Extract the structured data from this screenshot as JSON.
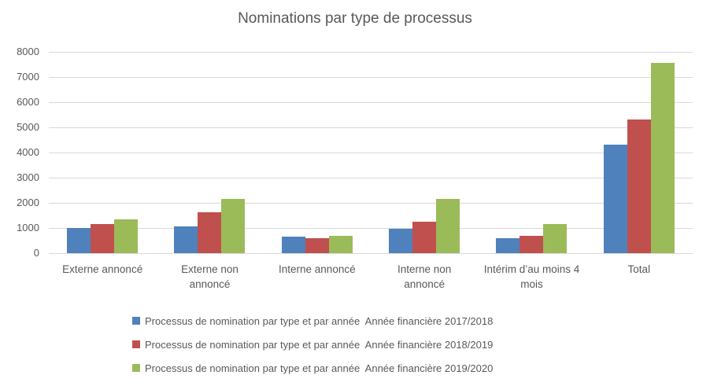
{
  "colors": {
    "background": "#ffffff",
    "gridline": "#d9d9d9",
    "text": "#595959",
    "series_blue": "#4F81BD",
    "series_red": "#C0504D",
    "series_green": "#9BBB59"
  },
  "chart_data": {
    "type": "bar",
    "title": "Nominations par type de processus",
    "categories": [
      "Externe annoncé",
      "Externe non annoncé",
      "Interne annoncé",
      "Interne non annoncé",
      "Intérim d’au moins 4 mois",
      "Total"
    ],
    "series": [
      {
        "name": "Processus de nomination par type et par année  Année financière 2017/2018",
        "color": "#4F81BD",
        "values": [
          1000,
          1050,
          670,
          980,
          600,
          4300
        ]
      },
      {
        "name": "Processus de nomination par type et par année  Année financière 2018/2019",
        "color": "#C0504D",
        "values": [
          1150,
          1630,
          580,
          1240,
          700,
          5300
        ]
      },
      {
        "name": "Processus de nomination par type et par année  Année financière 2019/2020",
        "color": "#9BBB59",
        "values": [
          1350,
          2150,
          700,
          2150,
          1150,
          7550
        ]
      }
    ],
    "y_ticks": [
      0,
      1000,
      2000,
      3000,
      4000,
      5000,
      6000,
      7000,
      8000
    ],
    "ylim": [
      0,
      8000
    ],
    "xlabel": "",
    "ylabel": "",
    "grid": true,
    "legend_position": "bottom-left"
  }
}
